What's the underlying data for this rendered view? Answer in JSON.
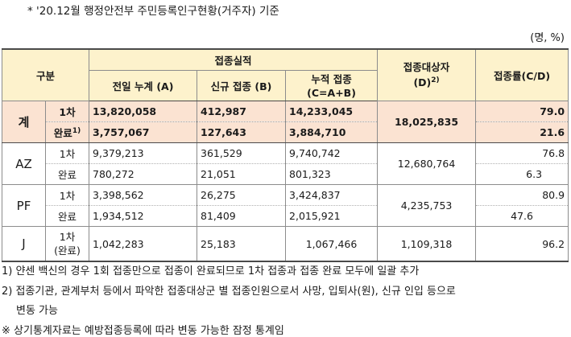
{
  "top_note": "* '20.12월 행정안전부 주민등록인구현황(거주자) 기준",
  "unit": "(명, %)",
  "headers": {
    "gubun": "구분",
    "performance": "접종실적",
    "prev_day": "전일 누계 (A)",
    "new": "신규 접종 (B)",
    "cumulative_line1": "누적 접종",
    "cumulative_line2": "(C=A+B)",
    "target_line1": "접종대상자",
    "target_line2": "(D)",
    "target_sup": "2)",
    "rate": "접종률(C/D)"
  },
  "total": {
    "label": "계",
    "first": {
      "label": "1차",
      "prev": "13,820,058",
      "new": "412,987",
      "cum": "14,233,045",
      "rate": "79.0"
    },
    "complete": {
      "label": "완료",
      "label_sup": "1)",
      "prev": "3,757,067",
      "new": "127,643",
      "cum": "3,884,710",
      "rate": "21.6"
    },
    "target": "18,025,835"
  },
  "rows": [
    {
      "label": "AZ",
      "first": {
        "label": "1차",
        "prev": "9,379,213",
        "new": "361,529",
        "cum": "9,740,742",
        "rate": "76.8"
      },
      "complete": {
        "label": "완료",
        "prev": "780,272",
        "new": "21,051",
        "cum": "801,323",
        "rate": "6.3"
      },
      "target": "12,680,764"
    },
    {
      "label": "PF",
      "first": {
        "label": "1차",
        "prev": "3,398,562",
        "new": "26,275",
        "cum": "3,424,837",
        "rate": "80.9"
      },
      "complete": {
        "label": "완료",
        "prev": "1,934,512",
        "new": "81,409",
        "cum": "2,015,921",
        "rate": "47.6"
      },
      "target": "4,235,753"
    }
  ],
  "janssen": {
    "label": "J",
    "sub_line1": "1차",
    "sub_line2": "(완료)",
    "prev": "1,042,283",
    "new": "25,183",
    "cum": "1,067,466",
    "target": "1,109,318",
    "rate": "96.2"
  },
  "footnotes": {
    "fn1": "1) 얀센 백신의 경우 1회 접종만으로 접종이 완료되므로 1차 접종과 접종 완료 모두에 일괄 추가",
    "fn2": "2) 접종기관, 관계부처 등에서 파악한 접종대상군 별 접종인원으로서 사망, 입퇴사(원), 신규 인입 등으로",
    "fn2_cont": "변동 가능",
    "note": "※ 상기통계자료는 예방접종등록에 따라 변동 가능한 잠정 통계임"
  },
  "colors": {
    "header_bg": "#fdf2cc",
    "total_bg": "#fbe3d2"
  }
}
